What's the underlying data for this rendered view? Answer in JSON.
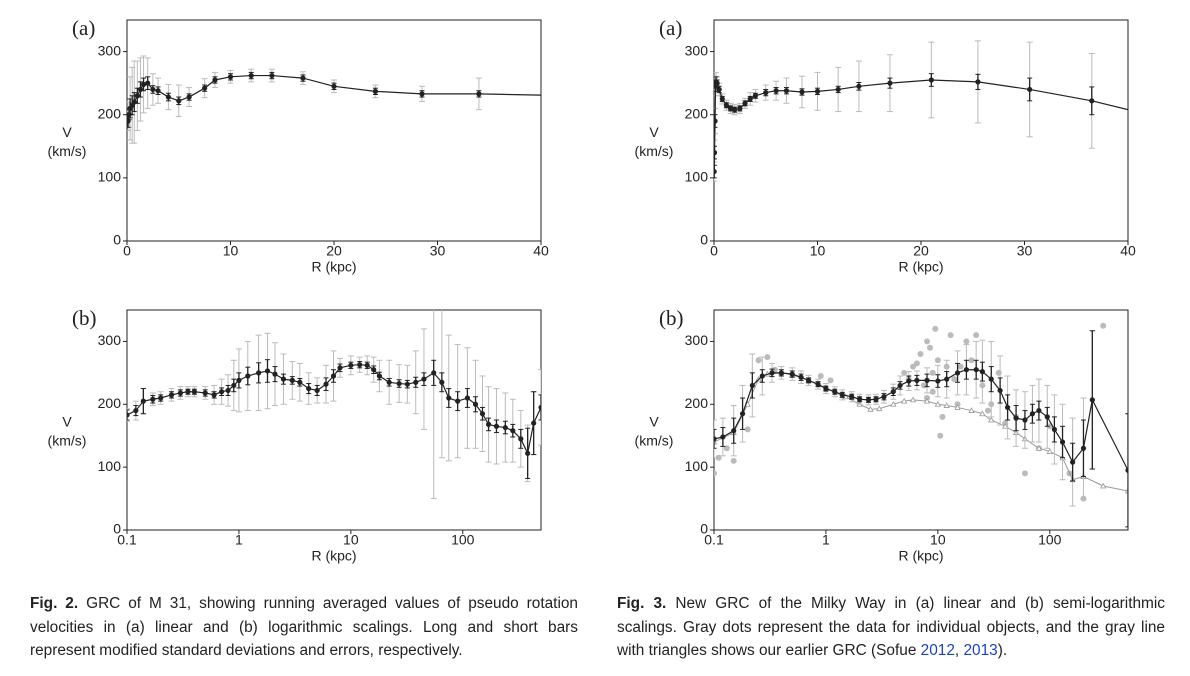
{
  "chart_data": [
    {
      "type": "line",
      "panel_label": "(a)",
      "ylabel": [
        "V",
        "(km/s)"
      ],
      "xlabel": "R (kpc)",
      "xscale": "linear",
      "xlim": [
        0,
        40
      ],
      "xticks": [
        0,
        10,
        20,
        30,
        40
      ],
      "ylim": [
        0,
        350
      ],
      "yticks": [
        0,
        100,
        200,
        300
      ],
      "color": "#222",
      "error_color": "#bbb",
      "x": [
        0.1,
        0.2,
        0.3,
        0.5,
        0.7,
        1.0,
        1.3,
        1.6,
        2.0,
        2.5,
        3.0,
        4.0,
        5.0,
        6.0,
        7.5,
        8.5,
        10,
        12,
        14,
        17,
        20,
        24,
        28.5,
        34,
        40
      ],
      "values": [
        190,
        200,
        210,
        215,
        220,
        230,
        240,
        248,
        250,
        240,
        238,
        228,
        222,
        228,
        242,
        255,
        260,
        262,
        262,
        258,
        245,
        237,
        233,
        233,
        231
      ],
      "sd": [
        15,
        20,
        50,
        60,
        65,
        55,
        50,
        45,
        40,
        25,
        20,
        20,
        25,
        15,
        15,
        12,
        10,
        10,
        10,
        10,
        10,
        10,
        12,
        25,
        null
      ],
      "err": [
        10,
        8,
        15,
        15,
        15,
        12,
        12,
        10,
        10,
        6,
        6,
        6,
        6,
        5,
        5,
        5,
        5,
        5,
        5,
        5,
        5,
        5,
        5,
        5,
        null
      ]
    },
    {
      "type": "line",
      "panel_label": "(b)",
      "ylabel": [
        "V",
        "(km/s)"
      ],
      "xlabel": "R (kpc)",
      "xscale": "log",
      "xlim": [
        0.1,
        500
      ],
      "xticks": [
        0.1,
        1,
        10,
        100
      ],
      "ylim": [
        0,
        350
      ],
      "yticks": [
        0,
        100,
        200,
        300
      ],
      "color": "#222",
      "error_color": "#bbb",
      "x": [
        0.1,
        0.12,
        0.14,
        0.17,
        0.2,
        0.25,
        0.3,
        0.35,
        0.4,
        0.5,
        0.6,
        0.7,
        0.8,
        0.9,
        1.0,
        1.2,
        1.5,
        1.8,
        2.1,
        2.5,
        3,
        3.5,
        4.2,
        5,
        6,
        7,
        8,
        10,
        12,
        14,
        16,
        18,
        22,
        27,
        32,
        38,
        45,
        55,
        65,
        75,
        90,
        110,
        130,
        150,
        170,
        200,
        240,
        280,
        330,
        380,
        430,
        500
      ],
      "values": [
        183,
        190,
        205,
        208,
        210,
        215,
        218,
        220,
        220,
        218,
        215,
        220,
        222,
        230,
        238,
        245,
        250,
        253,
        248,
        240,
        238,
        235,
        225,
        222,
        232,
        245,
        258,
        262,
        263,
        262,
        255,
        245,
        235,
        233,
        232,
        235,
        240,
        250,
        235,
        210,
        205,
        210,
        200,
        185,
        168,
        165,
        163,
        158,
        145,
        122,
        170,
        195
      ],
      "sd": [
        10,
        15,
        20,
        10,
        10,
        10,
        10,
        8,
        8,
        10,
        15,
        20,
        25,
        40,
        50,
        55,
        60,
        60,
        50,
        40,
        30,
        30,
        25,
        20,
        30,
        40,
        15,
        15,
        12,
        15,
        20,
        25,
        35,
        30,
        30,
        50,
        80,
        200,
        120,
        100,
        90,
        80,
        70,
        60,
        60,
        60,
        55,
        50,
        45,
        45,
        50,
        60
      ],
      "err": [
        8,
        8,
        20,
        6,
        5,
        5,
        5,
        4,
        4,
        5,
        5,
        6,
        8,
        10,
        12,
        14,
        16,
        18,
        12,
        8,
        6,
        6,
        8,
        8,
        10,
        10,
        6,
        5,
        5,
        5,
        6,
        6,
        6,
        6,
        6,
        8,
        10,
        20,
        15,
        15,
        15,
        15,
        12,
        10,
        10,
        10,
        10,
        10,
        15,
        40,
        50,
        20
      ]
    },
    {
      "type": "line",
      "panel_label": "(a)",
      "ylabel": [
        "V",
        "(km/s)"
      ],
      "xlabel": "R (kpc)",
      "xscale": "linear",
      "xlim": [
        0,
        40
      ],
      "xticks": [
        0,
        10,
        20,
        30,
        40
      ],
      "ylim": [
        0,
        350
      ],
      "yticks": [
        0,
        100,
        200,
        300
      ],
      "color": "#222",
      "error_color": "#bbb",
      "x": [
        0.02,
        0.05,
        0.1,
        0.15,
        0.2,
        0.3,
        0.5,
        0.8,
        1.2,
        1.6,
        2.0,
        2.5,
        3.0,
        3.5,
        4.0,
        5.0,
        6.0,
        7.0,
        8.5,
        10,
        12,
        14,
        17,
        21,
        25.5,
        30.5,
        36.5,
        40
      ],
      "values": [
        110,
        140,
        190,
        245,
        252,
        250,
        240,
        225,
        215,
        210,
        208,
        210,
        218,
        225,
        230,
        235,
        238,
        238,
        236,
        237,
        240,
        245,
        250,
        255,
        252,
        240,
        222,
        208
      ],
      "sd": [
        15,
        20,
        20,
        15,
        15,
        10,
        10,
        8,
        8,
        8,
        8,
        8,
        8,
        10,
        10,
        12,
        15,
        20,
        25,
        30,
        35,
        40,
        45,
        60,
        65,
        75,
        75,
        null
      ],
      "err": [
        10,
        10,
        10,
        8,
        8,
        5,
        5,
        4,
        4,
        4,
        4,
        4,
        4,
        4,
        4,
        5,
        5,
        5,
        5,
        5,
        5,
        6,
        8,
        10,
        12,
        18,
        22,
        null
      ]
    },
    {
      "type": "line",
      "panel_label": "(b)",
      "ylabel": [
        "V",
        "(km/s)"
      ],
      "xlabel": "R (kpc)",
      "xscale": "log",
      "xlim": [
        0.1,
        500
      ],
      "xticks": [
        0.1,
        1,
        10,
        100
      ],
      "ylim": [
        0,
        350
      ],
      "yticks": [
        0,
        100,
        200,
        300
      ],
      "color": "#222",
      "error_color": "#bbb",
      "x": [
        0.1,
        0.12,
        0.15,
        0.18,
        0.22,
        0.27,
        0.33,
        0.4,
        0.5,
        0.6,
        0.7,
        0.85,
        1.0,
        1.2,
        1.4,
        1.7,
        2.0,
        2.4,
        2.8,
        3.3,
        4,
        4.6,
        5.5,
        6.5,
        8,
        10,
        12,
        15,
        18,
        22,
        25,
        30,
        36,
        42,
        50,
        60,
        70,
        80,
        95,
        110,
        130,
        160,
        200,
        240,
        500
      ],
      "values": [
        145,
        148,
        158,
        185,
        230,
        245,
        250,
        250,
        248,
        243,
        238,
        232,
        225,
        220,
        215,
        212,
        208,
        207,
        208,
        212,
        220,
        230,
        237,
        238,
        238,
        237,
        240,
        250,
        255,
        255,
        252,
        240,
        222,
        195,
        178,
        175,
        185,
        190,
        180,
        160,
        140,
        108,
        130,
        207,
        95
      ],
      "sd": [
        30,
        30,
        40,
        45,
        50,
        30,
        15,
        10,
        10,
        10,
        8,
        8,
        8,
        8,
        8,
        8,
        8,
        8,
        8,
        10,
        12,
        15,
        15,
        15,
        20,
        25,
        30,
        35,
        40,
        45,
        50,
        60,
        55,
        50,
        45,
        45,
        45,
        50,
        50,
        55,
        60,
        70,
        80,
        110,
        90
      ],
      "err": [
        15,
        15,
        20,
        25,
        20,
        10,
        6,
        5,
        5,
        5,
        4,
        4,
        4,
        4,
        4,
        4,
        4,
        4,
        4,
        5,
        6,
        6,
        8,
        8,
        10,
        10,
        12,
        15,
        15,
        15,
        15,
        20,
        20,
        20,
        20,
        15,
        15,
        15,
        15,
        20,
        25,
        30,
        45,
        110,
        90
      ],
      "points": {
        "color": "#bbb",
        "x": [
          0.1,
          0.11,
          0.13,
          0.15,
          0.2,
          0.25,
          0.3,
          0.35,
          5,
          5.5,
          6,
          6.5,
          7,
          7.5,
          8,
          8.5,
          9,
          9.5,
          10,
          11,
          12,
          13,
          14,
          15,
          16,
          18,
          20,
          22,
          25,
          28,
          30,
          35,
          40,
          50,
          60,
          80,
          100,
          150,
          200,
          300,
          0.9,
          1.1,
          8,
          9,
          10.5
        ],
        "y": [
          90,
          115,
          130,
          110,
          160,
          270,
          275,
          255,
          250,
          240,
          260,
          265,
          280,
          230,
          300,
          290,
          250,
          320,
          270,
          180,
          260,
          310,
          240,
          200,
          260,
          300,
          270,
          310,
          230,
          190,
          200,
          250,
          170,
          180,
          90,
          130,
          165,
          90,
          50,
          325,
          245,
          238,
          210,
          220,
          150
        ]
      },
      "earlier": {
        "color": "#999",
        "x": [
          0.1,
          0.15,
          0.2,
          0.25,
          0.3,
          0.4,
          0.5,
          0.7,
          1,
          1.5,
          2,
          2.5,
          3,
          4,
          5,
          6,
          8,
          10,
          12,
          15,
          20,
          25,
          30,
          40,
          50,
          60,
          80,
          100,
          130,
          160,
          200,
          300,
          500
        ],
        "values": [
          140,
          155,
          200,
          240,
          248,
          250,
          247,
          238,
          225,
          212,
          200,
          192,
          193,
          200,
          205,
          207,
          205,
          200,
          198,
          195,
          190,
          185,
          175,
          165,
          155,
          145,
          130,
          125,
          115,
          80,
          85,
          70,
          62
        ]
      }
    }
  ],
  "captions": [
    {
      "label": "Fig. 2.",
      "text": "GRC of M 31, showing running averaged values of pseudo rotation velocities in (a) linear and (b) logarithmic scalings. Long and short bars represent modified standard deviations and errors, respectively."
    },
    {
      "label": "Fig. 3.",
      "parts": [
        "New GRC of the Milky Way in (a) linear and (b) semi-logarithmic scalings. Gray dots represent the data for individual objects, and the gray line with triangles shows our earlier GRC (Sofue ",
        "2012",
        ", ",
        "2013",
        ")."
      ]
    }
  ]
}
